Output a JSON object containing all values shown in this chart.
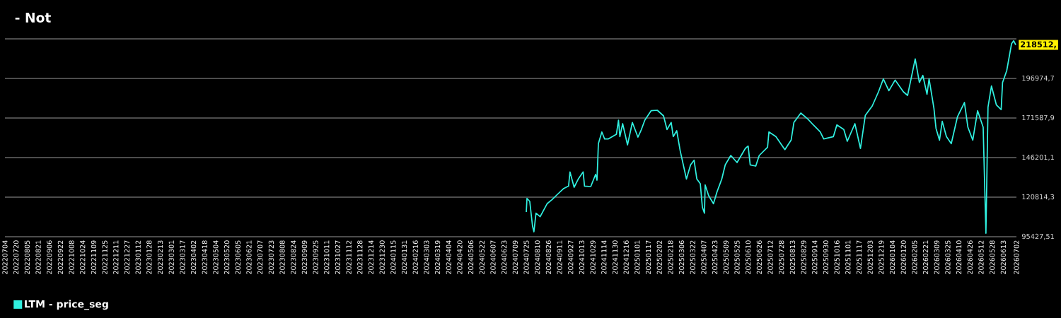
{
  "chart_data": {
    "type": "line",
    "title": "- Not",
    "x": [
      "2024-07-25",
      "2024-07-26",
      "2024-07-30",
      "2024-08-03",
      "2024-08-05",
      "2024-08-08",
      "2024-08-14",
      "2024-08-24",
      "2024-08-31",
      "2024-09-08",
      "2024-09-17",
      "2024-09-24",
      "2024-09-26",
      "2024-10-02",
      "2024-10-08",
      "2024-10-15",
      "2024-10-17",
      "2024-10-26",
      "2024-11-02",
      "2024-11-04",
      "2024-11-06",
      "2024-11-11",
      "2024-11-15",
      "2024-11-20",
      "2024-12-02",
      "2024-12-05",
      "2024-12-07",
      "2024-12-11",
      "2024-12-18",
      "2024-12-25",
      "2025-01-02",
      "2025-01-07",
      "2025-01-12",
      "2025-01-21",
      "2025-01-30",
      "2025-02-08",
      "2025-02-13",
      "2025-02-19",
      "2025-02-22",
      "2025-02-27",
      "2025-03-04",
      "2025-03-13",
      "2025-03-19",
      "2025-03-24",
      "2025-03-28",
      "2025-04-02",
      "2025-04-05",
      "2025-04-08",
      "2025-04-09",
      "2025-04-14",
      "2025-04-21",
      "2025-04-26",
      "2025-05-03",
      "2025-05-08",
      "2025-05-16",
      "2025-05-25",
      "2025-06-06",
      "2025-06-10",
      "2025-06-13",
      "2025-06-21",
      "2025-06-26",
      "2025-07-08",
      "2025-07-10",
      "2025-07-20",
      "2025-08-02",
      "2025-08-11",
      "2025-08-15",
      "2025-08-25",
      "2025-09-04",
      "2025-09-12",
      "2025-09-22",
      "2025-09-27",
      "2025-10-11",
      "2025-10-16",
      "2025-10-26",
      "2025-10-31",
      "2025-11-11",
      "2025-11-19",
      "2025-11-26",
      "2025-12-06",
      "2025-12-15",
      "2025-12-22",
      "2025-12-30",
      "2026-01-08",
      "2026-01-20",
      "2026-01-26",
      "2026-02-06",
      "2026-02-12",
      "2026-02-17",
      "2026-02-23",
      "2026-02-26",
      "2026-03-05",
      "2026-03-08",
      "2026-03-13",
      "2026-03-17",
      "2026-03-23",
      "2026-03-30",
      "2026-04-08",
      "2026-04-18",
      "2026-04-23",
      "2026-04-30",
      "2026-05-07",
      "2026-05-15",
      "2026-05-19",
      "2026-05-22",
      "2026-05-27",
      "2026-06-03",
      "2026-06-10",
      "2026-06-12",
      "2026-06-18",
      "2026-06-25",
      "2026-06-28",
      "2026-07-01"
    ],
    "series": [
      {
        "name": "LTM - price_seg",
        "color": "#30f0e0",
        "values": [
          111290,
          120040,
          118090,
          102230,
          98600,
          110520,
          108260,
          116600,
          119140,
          122630,
          126390,
          127930,
          137000,
          127160,
          132460,
          137000,
          127930,
          127610,
          135450,
          131690,
          155130,
          162650,
          158120,
          158120,
          161160,
          170220,
          159660,
          167960,
          154360,
          168730,
          159340,
          164190,
          170220,
          176250,
          176570,
          172940,
          164190,
          168730,
          159660,
          163420,
          150590,
          132460,
          141530,
          144520,
          132460,
          129430,
          114330,
          110520,
          128650,
          121850,
          116600,
          124120,
          132460,
          141530,
          147560,
          143020,
          152090,
          153590,
          141530,
          140760,
          147560,
          152860,
          162650,
          159660,
          151320,
          157390,
          168730,
          174760,
          170990,
          167180,
          162650,
          158120,
          159660,
          167180,
          164190,
          156620,
          167960,
          152090,
          173260,
          179290,
          188350,
          196650,
          189120,
          195920,
          188350,
          186090,
          209520,
          194380,
          198920,
          186860,
          196650,
          177790,
          164920,
          157390,
          169450,
          159660,
          155130,
          172490,
          181550,
          165690,
          157390,
          176250,
          165690,
          97690,
          178520,
          192120,
          180060,
          177020,
          194380,
          201950,
          219310,
          221130,
          218512
        ]
      }
    ],
    "xlim": [
      "2022-07-04",
      "2026-07-02"
    ],
    "xticks": [
      {
        "value": "2022-07-04",
        "label": "20220704"
      },
      {
        "value": "2022-07-20",
        "label": "20220720"
      },
      {
        "value": "2022-08-05",
        "label": "20220805"
      },
      {
        "value": "2022-08-21",
        "label": "20220821"
      },
      {
        "value": "2022-09-06",
        "label": "20220906"
      },
      {
        "value": "2022-09-22",
        "label": "20220922"
      },
      {
        "value": "2022-10-08",
        "label": "20221008"
      },
      {
        "value": "2022-10-24",
        "label": "20221024"
      },
      {
        "value": "2022-11-09",
        "label": "20221109"
      },
      {
        "value": "2022-11-25",
        "label": "20221125"
      },
      {
        "value": "2022-12-11",
        "label": "20221211"
      },
      {
        "value": "2022-12-27",
        "label": "20221227"
      },
      {
        "value": "2023-01-12",
        "label": "20230112"
      },
      {
        "value": "2023-01-28",
        "label": "20230128"
      },
      {
        "value": "2023-02-13",
        "label": "20230213"
      },
      {
        "value": "2023-03-01",
        "label": "20230301"
      },
      {
        "value": "2023-03-17",
        "label": "20230317"
      },
      {
        "value": "2023-04-02",
        "label": "20230402"
      },
      {
        "value": "2023-04-18",
        "label": "20230418"
      },
      {
        "value": "2023-05-04",
        "label": "20230504"
      },
      {
        "value": "2023-05-20",
        "label": "20230520"
      },
      {
        "value": "2023-06-05",
        "label": "20230605"
      },
      {
        "value": "2023-06-21",
        "label": "20230621"
      },
      {
        "value": "2023-07-07",
        "label": "20230707"
      },
      {
        "value": "2023-07-23",
        "label": "20230723"
      },
      {
        "value": "2023-08-08",
        "label": "20230808"
      },
      {
        "value": "2023-08-24",
        "label": "20230824"
      },
      {
        "value": "2023-09-09",
        "label": "20230909"
      },
      {
        "value": "2023-09-25",
        "label": "20230925"
      },
      {
        "value": "2023-10-11",
        "label": "20231011"
      },
      {
        "value": "2023-10-27",
        "label": "20231027"
      },
      {
        "value": "2023-11-12",
        "label": "20231112"
      },
      {
        "value": "2023-11-28",
        "label": "20231128"
      },
      {
        "value": "2023-12-14",
        "label": "20231214"
      },
      {
        "value": "2023-12-30",
        "label": "20231230"
      },
      {
        "value": "2024-01-15",
        "label": "20240115"
      },
      {
        "value": "2024-01-31",
        "label": "20240131"
      },
      {
        "value": "2024-02-16",
        "label": "20240216"
      },
      {
        "value": "2024-03-03",
        "label": "20240303"
      },
      {
        "value": "2024-03-19",
        "label": "20240319"
      },
      {
        "value": "2024-04-04",
        "label": "20240404"
      },
      {
        "value": "2024-04-20",
        "label": "20240420"
      },
      {
        "value": "2024-05-06",
        "label": "20240506"
      },
      {
        "value": "2024-05-22",
        "label": "20240522"
      },
      {
        "value": "2024-06-07",
        "label": "20240607"
      },
      {
        "value": "2024-06-23",
        "label": "20240623"
      },
      {
        "value": "2024-07-09",
        "label": "20240709"
      },
      {
        "value": "2024-07-25",
        "label": "20240725"
      },
      {
        "value": "2024-08-10",
        "label": "20240810"
      },
      {
        "value": "2024-08-26",
        "label": "20240826"
      },
      {
        "value": "2024-09-11",
        "label": "20240911"
      },
      {
        "value": "2024-09-27",
        "label": "20240927"
      },
      {
        "value": "2024-10-13",
        "label": "20241013"
      },
      {
        "value": "2024-10-29",
        "label": "20241029"
      },
      {
        "value": "2024-11-14",
        "label": "20241114"
      },
      {
        "value": "2024-11-30",
        "label": "20241130"
      },
      {
        "value": "2024-12-16",
        "label": "20241216"
      },
      {
        "value": "2025-01-01",
        "label": "20250101"
      },
      {
        "value": "2025-01-17",
        "label": "20250117"
      },
      {
        "value": "2025-02-02",
        "label": "20250202"
      },
      {
        "value": "2025-02-18",
        "label": "20250218"
      },
      {
        "value": "2025-03-06",
        "label": "20250306"
      },
      {
        "value": "2025-03-22",
        "label": "20250322"
      },
      {
        "value": "2025-04-07",
        "label": "20250407"
      },
      {
        "value": "2025-04-23",
        "label": "20250423"
      },
      {
        "value": "2025-05-09",
        "label": "20250509"
      },
      {
        "value": "2025-05-25",
        "label": "20250525"
      },
      {
        "value": "2025-06-10",
        "label": "20250610"
      },
      {
        "value": "2025-06-26",
        "label": "20250626"
      },
      {
        "value": "2025-07-12",
        "label": "20250712"
      },
      {
        "value": "2025-07-28",
        "label": "20250728"
      },
      {
        "value": "2025-08-13",
        "label": "20250813"
      },
      {
        "value": "2025-08-29",
        "label": "20250829"
      },
      {
        "value": "2025-09-14",
        "label": "20250914"
      },
      {
        "value": "2025-09-30",
        "label": "20250930"
      },
      {
        "value": "2025-10-16",
        "label": "20251016"
      },
      {
        "value": "2025-11-01",
        "label": "20251101"
      },
      {
        "value": "2025-11-17",
        "label": "20251117"
      },
      {
        "value": "2025-12-03",
        "label": "20251203"
      },
      {
        "value": "2025-12-19",
        "label": "20251219"
      },
      {
        "value": "2026-01-04",
        "label": "20260104"
      },
      {
        "value": "2026-01-20",
        "label": "20260120"
      },
      {
        "value": "2026-02-05",
        "label": "20260205"
      },
      {
        "value": "2026-02-21",
        "label": "20260221"
      },
      {
        "value": "2026-03-09",
        "label": "20260309"
      },
      {
        "value": "2026-03-25",
        "label": "20260325"
      },
      {
        "value": "2026-04-10",
        "label": "20260410"
      },
      {
        "value": "2026-04-26",
        "label": "20260426"
      },
      {
        "value": "2026-05-12",
        "label": "20260512"
      },
      {
        "value": "2026-05-28",
        "label": "20260528"
      },
      {
        "value": "2026-06-13",
        "label": "20260613"
      },
      {
        "value": "2026-07-02",
        "label": "20260702"
      }
    ],
    "ylim": [
      95427.51,
      222361.51
    ],
    "yticks": [
      {
        "value": 95427.51,
        "label": "95427,51"
      },
      {
        "value": 120814.31,
        "label": "120814,3"
      },
      {
        "value": 146201.11,
        "label": "146201,1"
      },
      {
        "value": 171587.91,
        "label": "171587,9"
      },
      {
        "value": 196974.71,
        "label": "196974,7"
      }
    ],
    "grid": "y",
    "legend": "bottom left",
    "annotations": [
      {
        "text": "218512,",
        "x": "2026-07-01",
        "y": 218512
      }
    ]
  }
}
